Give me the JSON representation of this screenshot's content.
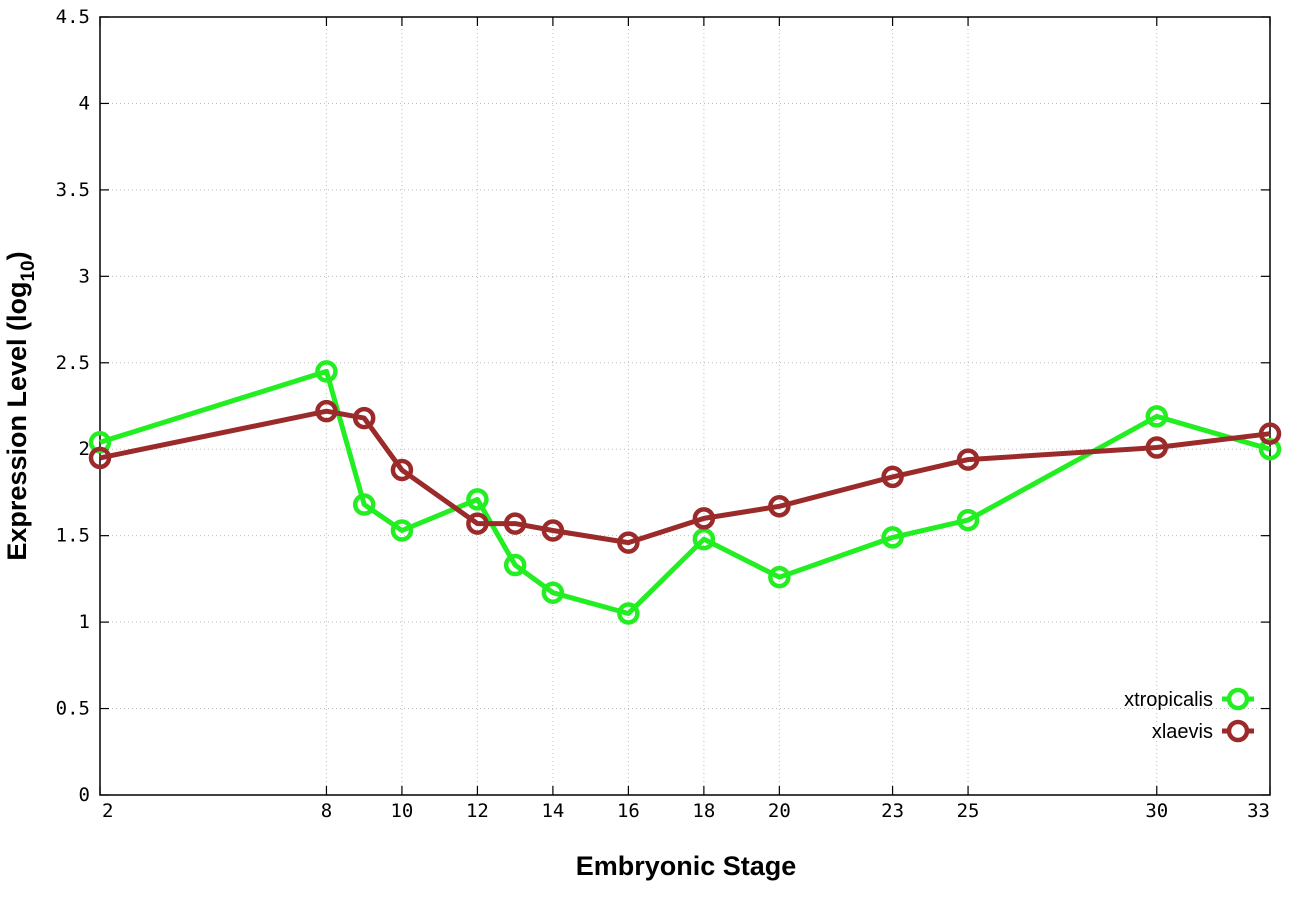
{
  "chart_data": {
    "type": "line",
    "xlabel": "Embryonic Stage",
    "ylabel_main": "Expression Level (log",
    "ylabel_sub": "10",
    "ylabel_close": ")",
    "ylim": [
      0,
      4.5
    ],
    "xlim": [
      2,
      33
    ],
    "x_ticks": [
      2,
      8,
      10,
      12,
      14,
      16,
      18,
      20,
      23,
      25,
      30,
      33
    ],
    "y_ticks": [
      0,
      0.5,
      1,
      1.5,
      2,
      2.5,
      3,
      3.5,
      4,
      4.5
    ],
    "y_tick_labels": [
      "0",
      "0.5",
      "1",
      "1.5",
      "2",
      "2.5",
      "3",
      "3.5",
      "4",
      "4.5"
    ],
    "grid": true,
    "legend_position": "bottom-right",
    "series": [
      {
        "name": "xtropicalis",
        "color": "#22ee22",
        "x": [
          2,
          8,
          9,
          10,
          12,
          13,
          14,
          16,
          18,
          20,
          23,
          25,
          30,
          33
        ],
        "y": [
          2.04,
          2.45,
          1.68,
          1.53,
          1.71,
          1.33,
          1.17,
          1.05,
          1.48,
          1.26,
          1.49,
          1.59,
          2.19,
          2.0
        ]
      },
      {
        "name": "xlaevis",
        "color": "#9b2a2a",
        "x": [
          2,
          8,
          9,
          10,
          12,
          13,
          14,
          16,
          18,
          20,
          23,
          25,
          30,
          33
        ],
        "y": [
          1.95,
          2.22,
          2.18,
          1.88,
          1.57,
          1.57,
          1.53,
          1.46,
          1.6,
          1.67,
          1.84,
          1.94,
          2.01,
          2.09
        ]
      }
    ]
  }
}
